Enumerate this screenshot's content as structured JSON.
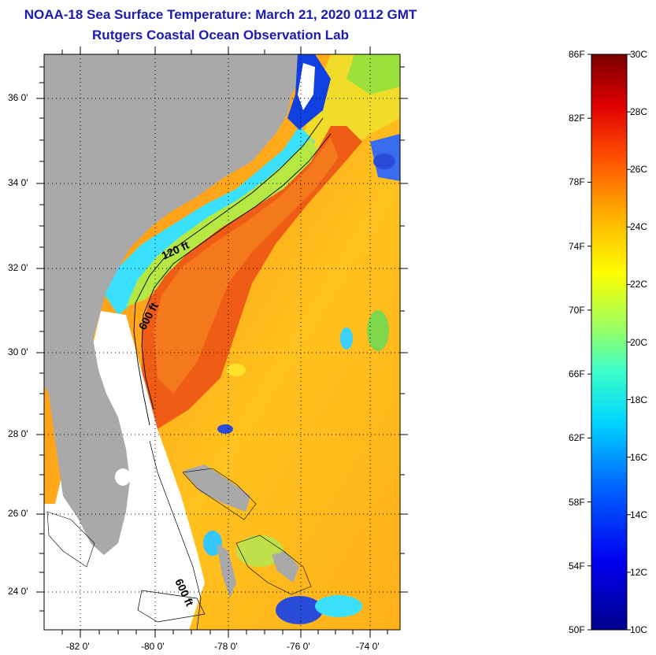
{
  "header": {
    "title": "NOAA-18 Sea Surface Temperature:  March 21, 2020 0112 GMT",
    "subtitle": "Rutgers Coastal Ocean Observation Lab"
  },
  "map": {
    "lat_labels": [
      "36 0'",
      "34 0'",
      "32 0'",
      "30 0'",
      "28 0'",
      "26 0'",
      "24 0'"
    ],
    "lon_labels": [
      "-82 0'",
      "-80 0'",
      "-78 0'",
      "-76 0'",
      "-74 0'"
    ],
    "contour_labels": [
      "120 ft",
      "600 ft",
      "600 ft"
    ],
    "land_color": "#a9a9a9",
    "warm_color": "#ee5a16",
    "cool_color": "#2ec7ff"
  },
  "colorbar": {
    "f_labels": [
      "86F",
      "82F",
      "78F",
      "74F",
      "70F",
      "66F",
      "62F",
      "58F",
      "54F",
      "50F"
    ],
    "c_labels": [
      "30C",
      "28C",
      "26C",
      "24C",
      "22C",
      "20C",
      "18C",
      "16C",
      "14C",
      "12C",
      "10C"
    ],
    "min_c": 10,
    "max_c": 30
  }
}
